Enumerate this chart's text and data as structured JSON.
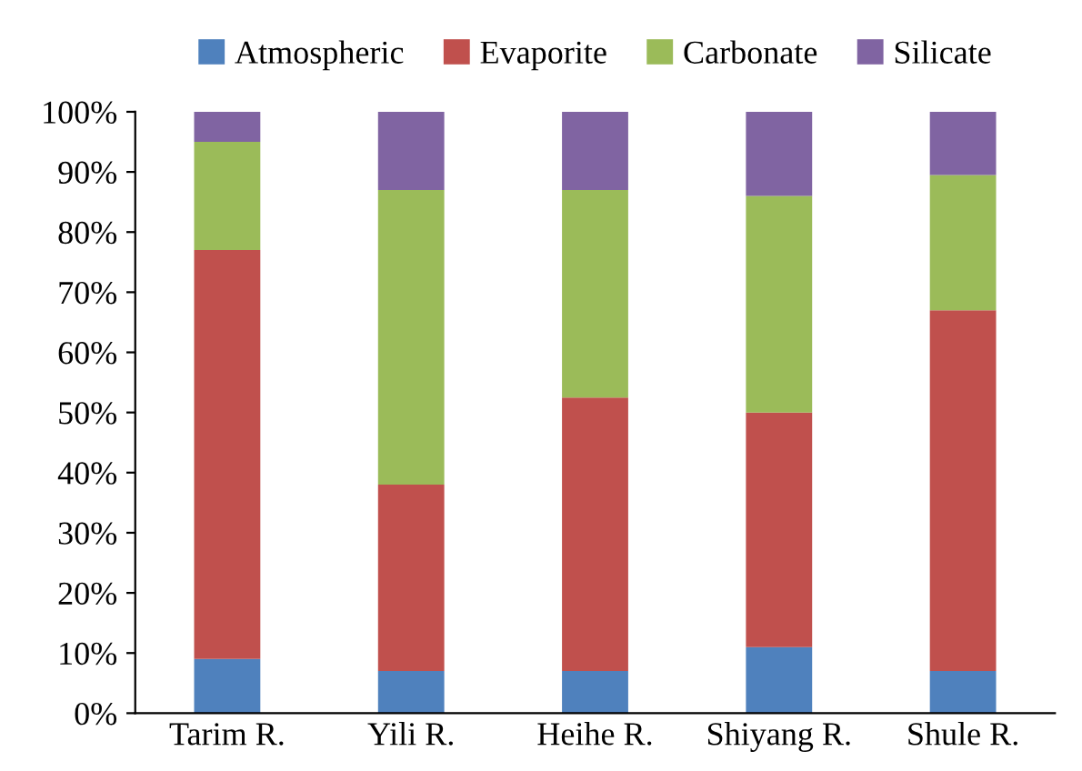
{
  "chart_data": {
    "type": "bar",
    "stacked": true,
    "categories": [
      "Tarim R.",
      "Yili R.",
      "Heihe R.",
      "Shiyang R.",
      "Shule R."
    ],
    "series": [
      {
        "name": "Atmospheric",
        "color": "#4f81bd",
        "values": [
          9,
          7,
          7,
          11,
          7
        ]
      },
      {
        "name": "Evaporite",
        "color": "#c0504d",
        "values": [
          68,
          31,
          45.5,
          39,
          60
        ]
      },
      {
        "name": "Carbonate",
        "color": "#9bbb59",
        "values": [
          18,
          49,
          34.5,
          36,
          22.5
        ]
      },
      {
        "name": "Silicate",
        "color": "#8064a2",
        "values": [
          5,
          13,
          13,
          14,
          10.5
        ]
      }
    ],
    "ylim": [
      0,
      100
    ],
    "yticks": [
      {
        "value": 0,
        "label": "0%"
      },
      {
        "value": 10,
        "label": "10%"
      },
      {
        "value": 20,
        "label": "20%"
      },
      {
        "value": 30,
        "label": "30%"
      },
      {
        "value": 40,
        "label": "40%"
      },
      {
        "value": 50,
        "label": "50%"
      },
      {
        "value": 60,
        "label": "60%"
      },
      {
        "value": 70,
        "label": "70%"
      },
      {
        "value": 80,
        "label": "80%"
      },
      {
        "value": 90,
        "label": "90%"
      },
      {
        "value": 100,
        "label": "100%"
      }
    ],
    "legend": "top",
    "grid": false
  }
}
